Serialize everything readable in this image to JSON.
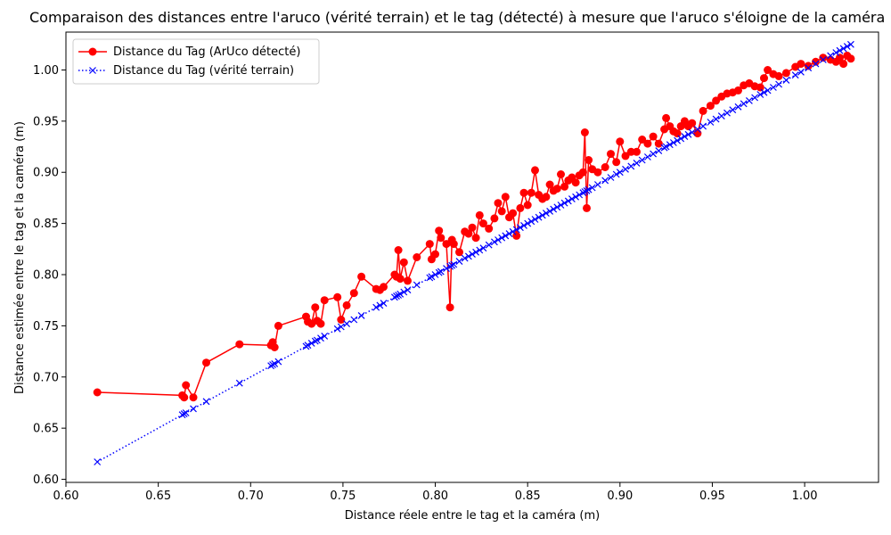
{
  "chart_data": {
    "type": "line",
    "title": "Comparaison des distances entre l'aruco (vérité terrain) et le tag (détecté) à mesure que l'aruco s'éloigne de la caméra",
    "xlabel": "Distance réele entre le tag et la caméra (m)",
    "ylabel": "Distance estimée entre le tag et la caméra (m)",
    "xlim": [
      0.6,
      1.04
    ],
    "ylim": [
      0.597,
      1.037
    ],
    "x_ticks": [
      "0.60",
      "0.65",
      "0.70",
      "0.75",
      "0.80",
      "0.85",
      "0.90",
      "0.95",
      "1.00"
    ],
    "y_ticks": [
      "0.60",
      "0.65",
      "0.70",
      "0.75",
      "0.80",
      "0.85",
      "0.90",
      "0.95",
      "1.00"
    ],
    "grid": false,
    "legend_position": "top-left",
    "x": [
      0.617,
      0.663,
      0.664,
      0.665,
      0.669,
      0.676,
      0.694,
      0.711,
      0.712,
      0.713,
      0.715,
      0.73,
      0.731,
      0.733,
      0.735,
      0.736,
      0.738,
      0.74,
      0.747,
      0.749,
      0.752,
      0.756,
      0.76,
      0.768,
      0.77,
      0.772,
      0.778,
      0.779,
      0.78,
      0.781,
      0.783,
      0.785,
      0.79,
      0.797,
      0.798,
      0.8,
      0.802,
      0.803,
      0.806,
      0.808,
      0.809,
      0.81,
      0.813,
      0.816,
      0.818,
      0.82,
      0.822,
      0.824,
      0.826,
      0.829,
      0.832,
      0.834,
      0.836,
      0.838,
      0.84,
      0.842,
      0.844,
      0.846,
      0.848,
      0.85,
      0.852,
      0.854,
      0.856,
      0.858,
      0.86,
      0.862,
      0.864,
      0.866,
      0.868,
      0.87,
      0.872,
      0.874,
      0.876,
      0.878,
      0.88,
      0.881,
      0.882,
      0.883,
      0.885,
      0.888,
      0.892,
      0.895,
      0.898,
      0.9,
      0.903,
      0.906,
      0.909,
      0.912,
      0.915,
      0.918,
      0.921,
      0.924,
      0.925,
      0.927,
      0.929,
      0.931,
      0.933,
      0.935,
      0.937,
      0.939,
      0.942,
      0.945,
      0.949,
      0.952,
      0.955,
      0.958,
      0.961,
      0.964,
      0.967,
      0.97,
      0.973,
      0.976,
      0.978,
      0.98,
      0.983,
      0.986,
      0.99,
      0.995,
      0.998,
      1.002,
      1.006,
      1.01,
      1.014,
      1.017,
      1.019,
      1.021,
      1.023,
      1.025
    ],
    "series": [
      {
        "name": "Distance du Tag (ArUco détecté)",
        "color": "#ff0000",
        "marker": "circle",
        "line_style": "solid",
        "values": [
          0.685,
          0.682,
          0.68,
          0.692,
          0.68,
          0.714,
          0.732,
          0.731,
          0.734,
          0.729,
          0.75,
          0.759,
          0.754,
          0.752,
          0.768,
          0.755,
          0.752,
          0.775,
          0.778,
          0.756,
          0.77,
          0.782,
          0.798,
          0.786,
          0.785,
          0.788,
          0.8,
          0.798,
          0.824,
          0.796,
          0.812,
          0.794,
          0.817,
          0.83,
          0.815,
          0.82,
          0.843,
          0.836,
          0.83,
          0.768,
          0.834,
          0.83,
          0.822,
          0.842,
          0.84,
          0.846,
          0.836,
          0.858,
          0.85,
          0.845,
          0.855,
          0.87,
          0.862,
          0.876,
          0.856,
          0.86,
          0.838,
          0.865,
          0.88,
          0.868,
          0.88,
          0.902,
          0.878,
          0.874,
          0.876,
          0.888,
          0.882,
          0.884,
          0.898,
          0.886,
          0.892,
          0.895,
          0.89,
          0.897,
          0.9,
          0.939,
          0.865,
          0.912,
          0.903,
          0.9,
          0.905,
          0.918,
          0.91,
          0.93,
          0.916,
          0.92,
          0.92,
          0.932,
          0.928,
          0.935,
          0.928,
          0.942,
          0.953,
          0.945,
          0.94,
          0.938,
          0.945,
          0.95,
          0.945,
          0.948,
          0.938,
          0.96,
          0.965,
          0.97,
          0.974,
          0.977,
          0.978,
          0.98,
          0.985,
          0.987,
          0.984,
          0.983,
          0.992,
          1.0,
          0.996,
          0.994,
          0.997,
          1.003,
          1.006,
          1.004,
          1.008,
          1.012,
          1.01,
          1.008,
          1.012,
          1.006,
          1.014,
          1.011
        ]
      },
      {
        "name": "Distance du Tag (vérité terrain)",
        "color": "#0000ff",
        "marker": "x",
        "line_style": "dotted",
        "values": [
          0.617,
          0.663,
          0.664,
          0.665,
          0.669,
          0.676,
          0.694,
          0.711,
          0.712,
          0.713,
          0.715,
          0.73,
          0.731,
          0.733,
          0.735,
          0.736,
          0.738,
          0.74,
          0.747,
          0.749,
          0.752,
          0.756,
          0.76,
          0.768,
          0.77,
          0.772,
          0.778,
          0.779,
          0.78,
          0.781,
          0.783,
          0.785,
          0.79,
          0.797,
          0.798,
          0.8,
          0.802,
          0.803,
          0.806,
          0.808,
          0.809,
          0.81,
          0.813,
          0.816,
          0.818,
          0.82,
          0.822,
          0.824,
          0.826,
          0.829,
          0.832,
          0.834,
          0.836,
          0.838,
          0.84,
          0.842,
          0.844,
          0.846,
          0.848,
          0.85,
          0.852,
          0.854,
          0.856,
          0.858,
          0.86,
          0.862,
          0.864,
          0.866,
          0.868,
          0.87,
          0.872,
          0.874,
          0.876,
          0.878,
          0.88,
          0.881,
          0.882,
          0.883,
          0.885,
          0.888,
          0.892,
          0.895,
          0.898,
          0.9,
          0.903,
          0.906,
          0.909,
          0.912,
          0.915,
          0.918,
          0.921,
          0.924,
          0.925,
          0.927,
          0.929,
          0.931,
          0.933,
          0.935,
          0.937,
          0.939,
          0.942,
          0.945,
          0.949,
          0.952,
          0.955,
          0.958,
          0.961,
          0.964,
          0.967,
          0.97,
          0.973,
          0.976,
          0.978,
          0.98,
          0.983,
          0.986,
          0.99,
          0.995,
          0.998,
          1.002,
          1.006,
          1.01,
          1.014,
          1.017,
          1.019,
          1.021,
          1.023,
          1.025
        ]
      }
    ]
  }
}
